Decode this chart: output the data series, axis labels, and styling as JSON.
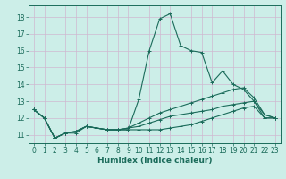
{
  "xlabel": "Humidex (Indice chaleur)",
  "bg_color": "#cceee8",
  "grid_color": "#d0b8d0",
  "line_color": "#1a6b5a",
  "xlim": [
    -0.5,
    23.5
  ],
  "ylim": [
    10.5,
    18.7
  ],
  "yticks": [
    11,
    12,
    13,
    14,
    15,
    16,
    17,
    18
  ],
  "xticks": [
    0,
    1,
    2,
    3,
    4,
    5,
    6,
    7,
    8,
    9,
    10,
    11,
    12,
    13,
    14,
    15,
    16,
    17,
    18,
    19,
    20,
    21,
    22,
    23
  ],
  "series": [
    [
      12.5,
      12.0,
      10.8,
      11.1,
      11.1,
      11.5,
      11.4,
      11.3,
      11.3,
      11.3,
      13.1,
      16.0,
      17.9,
      18.2,
      16.3,
      16.0,
      15.9,
      14.1,
      14.8,
      14.0,
      13.7,
      13.0,
      12.2,
      12.0
    ],
    [
      12.5,
      12.0,
      10.8,
      11.1,
      11.2,
      11.5,
      11.4,
      11.3,
      11.3,
      11.3,
      11.3,
      11.3,
      11.3,
      11.4,
      11.5,
      11.6,
      11.8,
      12.0,
      12.2,
      12.4,
      12.6,
      12.7,
      12.0,
      12.0
    ],
    [
      12.5,
      12.0,
      10.8,
      11.1,
      11.2,
      11.5,
      11.4,
      11.3,
      11.3,
      11.4,
      11.7,
      12.0,
      12.3,
      12.5,
      12.7,
      12.9,
      13.1,
      13.3,
      13.5,
      13.7,
      13.8,
      13.2,
      12.2,
      12.0
    ],
    [
      12.5,
      12.0,
      10.8,
      11.1,
      11.2,
      11.5,
      11.4,
      11.3,
      11.3,
      11.4,
      11.5,
      11.7,
      11.9,
      12.1,
      12.2,
      12.3,
      12.4,
      12.5,
      12.7,
      12.8,
      12.9,
      13.0,
      12.0,
      12.0
    ]
  ],
  "tick_fontsize": 5.5,
  "xlabel_fontsize": 6.5
}
